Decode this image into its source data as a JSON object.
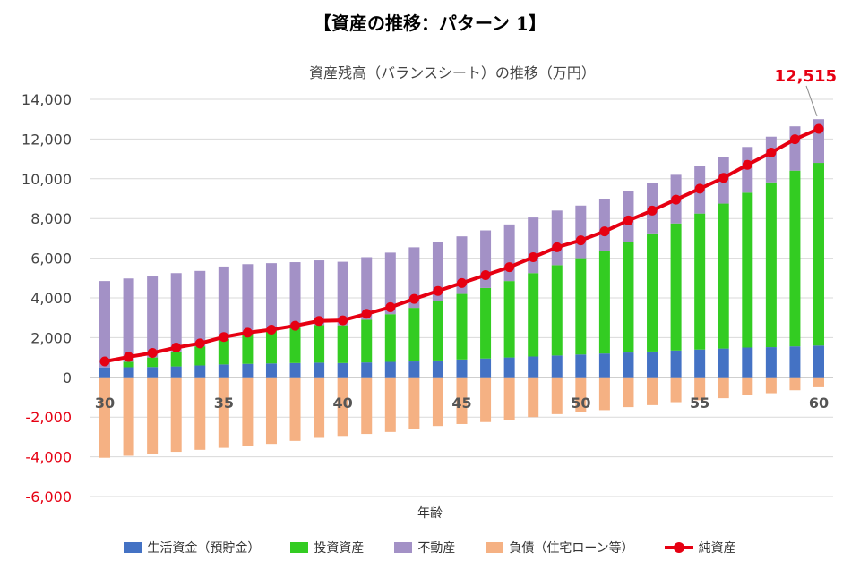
{
  "page_title": "【資産の推移：パターン 1】",
  "chart_data": {
    "type": "bar",
    "title": "資産残高（バランスシート）の推移（万円）",
    "xlabel": "年齢",
    "ylabel": "",
    "ylim": [
      -6000,
      14000
    ],
    "yticks": [
      14000,
      12000,
      10000,
      8000,
      6000,
      4000,
      2000,
      0,
      -2000,
      -4000,
      -6000
    ],
    "ytick_labels": [
      "14,000",
      "12,000",
      "10,000",
      "8,000",
      "6,000",
      "4,000",
      "2,000",
      "0",
      "-2,000",
      "-4,000",
      "-6,000"
    ],
    "x": [
      30,
      31,
      32,
      33,
      34,
      35,
      36,
      37,
      38,
      39,
      40,
      41,
      42,
      43,
      44,
      45,
      46,
      47,
      48,
      49,
      50,
      51,
      52,
      53,
      54,
      55,
      56,
      57,
      58,
      59,
      60
    ],
    "xtick_labels": [
      "30",
      "35",
      "40",
      "45",
      "50",
      "55",
      "60"
    ],
    "xtick_positions": [
      30,
      35,
      40,
      45,
      50,
      55,
      60
    ],
    "stacked": true,
    "grid": true,
    "legend_position": "bottom",
    "series": [
      {
        "name": "生活資金（預貯金）",
        "type": "bar",
        "color": "#4472c4",
        "values": [
          500,
          510,
          520,
          550,
          600,
          650,
          680,
          700,
          720,
          740,
          720,
          750,
          780,
          800,
          850,
          900,
          950,
          1000,
          1050,
          1100,
          1150,
          1200,
          1250,
          1300,
          1350,
          1400,
          1450,
          1500,
          1520,
          1560,
          1600
        ]
      },
      {
        "name": "投資資産",
        "type": "bar",
        "color": "#33cc22",
        "values": [
          0,
          270,
          480,
          750,
          960,
          1280,
          1570,
          1700,
          1780,
          1900,
          1900,
          2150,
          2400,
          2700,
          3000,
          3300,
          3550,
          3850,
          4200,
          4550,
          4850,
          5150,
          5550,
          5950,
          6400,
          6850,
          7300,
          7800,
          8300,
          8850,
          9200
        ]
      },
      {
        "name": "不動産",
        "type": "bar",
        "color": "#a391c6",
        "values": [
          4350,
          4200,
          4080,
          3950,
          3800,
          3650,
          3450,
          3350,
          3300,
          3250,
          3200,
          3150,
          3100,
          3050,
          2950,
          2900,
          2900,
          2850,
          2800,
          2750,
          2650,
          2650,
          2600,
          2550,
          2450,
          2400,
          2350,
          2300,
          2300,
          2230,
          2200
        ]
      },
      {
        "name": "負債（住宅ローン等）",
        "type": "bar",
        "color": "#f5b183",
        "values": [
          -4050,
          -3950,
          -3850,
          -3750,
          -3650,
          -3550,
          -3450,
          -3350,
          -3200,
          -3050,
          -2950,
          -2850,
          -2750,
          -2600,
          -2450,
          -2350,
          -2250,
          -2150,
          -2000,
          -1850,
          -1750,
          -1650,
          -1500,
          -1400,
          -1250,
          -1150,
          -1050,
          -900,
          -800,
          -650,
          -500
        ]
      },
      {
        "name": "純資産",
        "type": "line",
        "color": "#e60012",
        "values": [
          800,
          1030,
          1230,
          1500,
          1710,
          2030,
          2250,
          2400,
          2600,
          2840,
          2870,
          3200,
          3530,
          3950,
          4350,
          4750,
          5150,
          5550,
          6050,
          6550,
          6900,
          7350,
          7900,
          8400,
          8950,
          9500,
          10050,
          10700,
          11320,
          11990,
          12515
        ]
      }
    ],
    "annotations": [
      {
        "text": "12,515",
        "x": 60,
        "y": 12515,
        "color": "#e60012"
      }
    ]
  }
}
